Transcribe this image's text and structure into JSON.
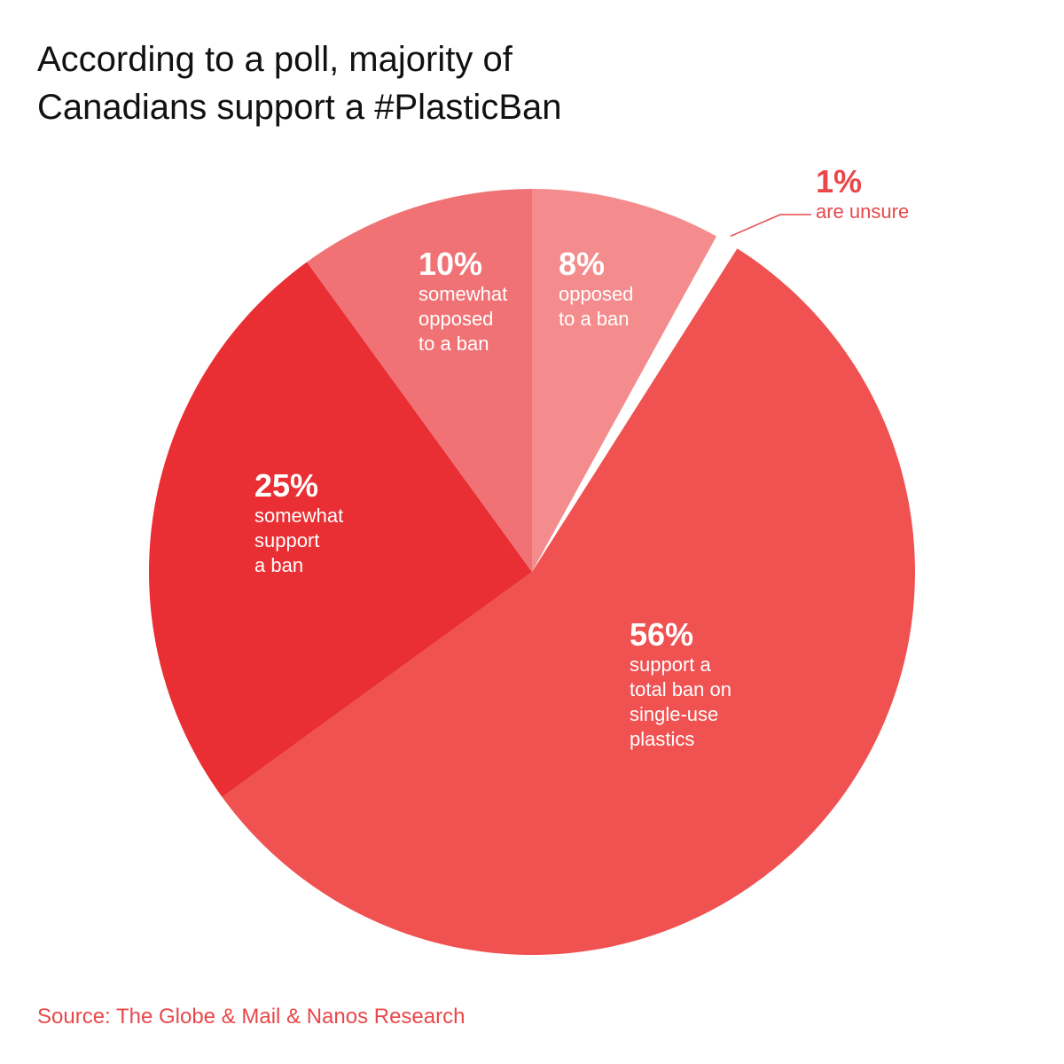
{
  "title_lines": [
    "According to a poll, majority of",
    "Canadians support a #PlasticBan"
  ],
  "source": "Source:  The Globe & Mail & Nanos Research",
  "chart_data": {
    "type": "pie",
    "title": "According to a poll, majority of Canadians support a #PlasticBan",
    "unit": "%",
    "slices": [
      {
        "label": "8%",
        "value": 8,
        "desc": "opposed\nto a ban",
        "color": "#f48b8c",
        "label_pos": "inside"
      },
      {
        "label": "1%",
        "value": 1,
        "desc": "are unsure",
        "color": "#ffffff",
        "label_pos": "outside"
      },
      {
        "label": "56%",
        "value": 56,
        "desc": "support a\ntotal ban on\nsingle-use\nplastics",
        "color": "#f05151",
        "label_pos": "inside"
      },
      {
        "label": "25%",
        "value": 25,
        "desc": "somewhat\nsupport\na ban",
        "color": "#e92f33",
        "label_pos": "inside"
      },
      {
        "label": "10%",
        "value": 10,
        "desc": "somewhat\nopposed\nto a ban",
        "color": "#f07275",
        "label_pos": "inside"
      }
    ]
  }
}
